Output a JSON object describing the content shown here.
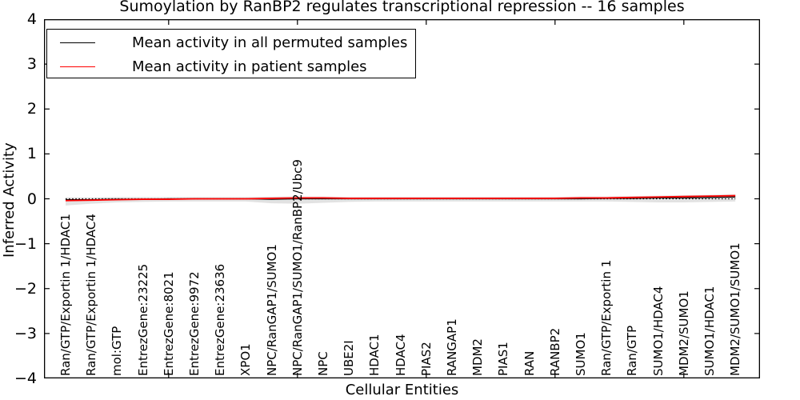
{
  "title": "Sumoylation by RanBP2 regulates transcriptional repression -- 16 samples",
  "axes": {
    "xlabel": "Cellular Entities",
    "ylabel": "Inferred Activity",
    "ytick_labels": [
      "4",
      "3",
      "2",
      "1",
      "0",
      "−1",
      "−2",
      "−3",
      "−4"
    ]
  },
  "legend": {
    "items": [
      {
        "label": "Mean activity in all permuted samples",
        "color": "#000000"
      },
      {
        "label": "Mean activity in patient samples",
        "color": "#ff0000"
      }
    ]
  },
  "chart_data": {
    "type": "line",
    "title": "Sumoylation by RanBP2 regulates transcriptional repression -- 16 samples",
    "xlabel": "Cellular Entities",
    "ylabel": "Inferred Activity",
    "ylim": [
      -4,
      4
    ],
    "ytick_values": [
      4,
      3,
      2,
      1,
      0,
      -1,
      -2,
      -3,
      -4
    ],
    "categories": [
      "Ran/GTP/Exportin 1/HDAC1",
      "Ran/GTP/Exportin 1/HDAC4",
      "mol:GTP",
      "EntrezGene:23225",
      "EntrezGene:8021",
      "EntrezGene:9972",
      "EntrezGene:23636",
      "XPO1",
      "NPC/RanGAP1/SUMO1",
      "NPC/RanGAP1/SUMO1/RanBP2/Ubc9",
      "NPC",
      "UBE2I",
      "HDAC1",
      "HDAC4",
      "PIAS2",
      "RANGAP1",
      "MDM2",
      "PIAS1",
      "RAN",
      "RANBP2",
      "SUMO1",
      "Ran/GTP/Exportin 1",
      "Ran/GTP",
      "SUMO1/HDAC4",
      "MDM2/SUMO1",
      "SUMO1/HDAC1",
      "MDM2/SUMO1/SUMO1"
    ],
    "series": [
      {
        "name": "Mean activity in all permuted samples",
        "color": "#000000",
        "values": [
          -0.02,
          -0.02,
          -0.01,
          -0.01,
          0.0,
          0.0,
          0.0,
          0.0,
          -0.01,
          0.0,
          0.0,
          0.0,
          0.0,
          0.0,
          0.0,
          0.0,
          0.0,
          0.0,
          0.0,
          0.0,
          0.0,
          0.01,
          0.01,
          0.02,
          0.02,
          0.03,
          0.04
        ]
      },
      {
        "name": "Mean activity in patient samples",
        "color": "#ff0000",
        "values": [
          -0.04,
          -0.03,
          -0.02,
          -0.01,
          -0.01,
          0.0,
          0.0,
          0.0,
          0.01,
          0.02,
          0.02,
          0.01,
          0.01,
          0.01,
          0.01,
          0.01,
          0.01,
          0.01,
          0.01,
          0.01,
          0.02,
          0.02,
          0.03,
          0.04,
          0.05,
          0.06,
          0.07
        ]
      }
    ],
    "band": {
      "color": "#d3d3d3",
      "upper": [
        0.03,
        0.03,
        0.04,
        0.04,
        0.04,
        0.04,
        0.04,
        0.04,
        0.05,
        0.05,
        0.05,
        0.04,
        0.04,
        0.04,
        0.04,
        0.04,
        0.04,
        0.04,
        0.04,
        0.04,
        0.05,
        0.05,
        0.06,
        0.07,
        0.08,
        0.09,
        0.1
      ],
      "lower": [
        -0.15,
        -0.11,
        -0.08,
        -0.07,
        -0.06,
        -0.06,
        -0.06,
        -0.06,
        -0.1,
        -0.11,
        -0.09,
        -0.07,
        -0.06,
        -0.06,
        -0.06,
        -0.06,
        -0.06,
        -0.06,
        -0.06,
        -0.06,
        -0.06,
        -0.06,
        -0.07,
        -0.08,
        -0.08,
        -0.07,
        -0.06
      ]
    },
    "zero_line": {
      "y": 0,
      "style": "dotted",
      "color": "#000000"
    },
    "layout": {
      "legend_position": "upper left",
      "grid": false,
      "x_major_tick_every": 5,
      "xtick_label_rotation": 90,
      "ticks_direction": "in",
      "ticks_on_all_sides": true
    }
  }
}
